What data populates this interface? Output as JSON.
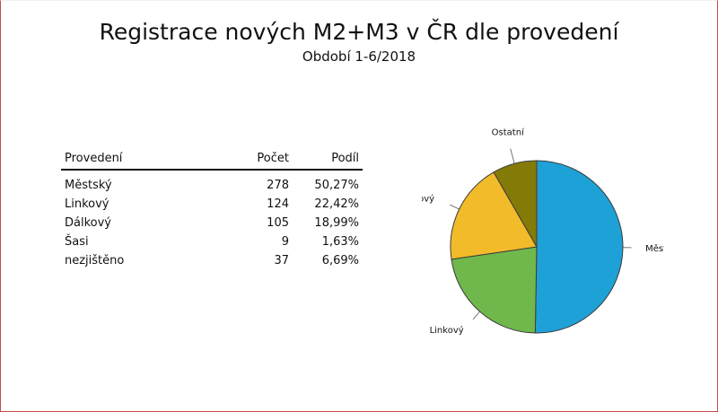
{
  "title": "Registrace nových M2+M3 v ČR dle provedení",
  "subtitle": "Období 1-6/2018",
  "table": {
    "headers": [
      "Provedení",
      "Počet",
      "Podíl"
    ],
    "rows": [
      {
        "label": "Městský",
        "count": "278",
        "share": "50,27%"
      },
      {
        "label": "Linkový",
        "count": "124",
        "share": "22,42%"
      },
      {
        "label": "Dálkový",
        "count": "105",
        "share": "18,99%"
      },
      {
        "label": "Šasi",
        "count": "9",
        "share": "1,63%"
      },
      {
        "label": "nezjištěno",
        "count": "37",
        "share": "6,69%"
      }
    ]
  },
  "chart_data": {
    "type": "pie",
    "slices": [
      {
        "label": "Městský",
        "value": 50.27,
        "color": "#1ea1d6"
      },
      {
        "label": "Linkový",
        "value": 22.42,
        "color": "#70b84c"
      },
      {
        "label": "Dálkový",
        "value": 18.99,
        "color": "#f2bb2a"
      },
      {
        "label": "Ostatní",
        "value": 8.32,
        "color": "#847a08"
      }
    ],
    "start": "12 o'clock",
    "direction": "clockwise"
  }
}
